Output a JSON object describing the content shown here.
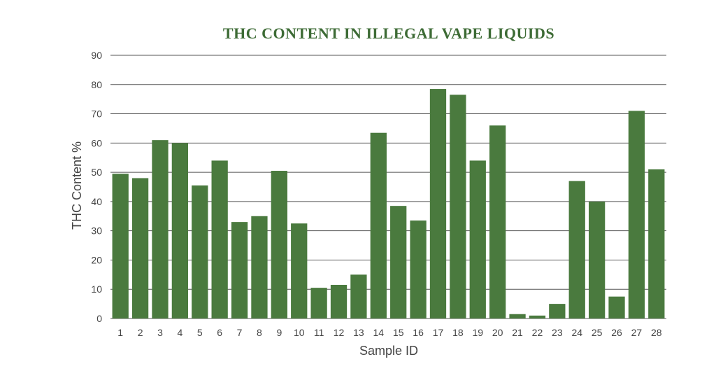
{
  "chart_data": {
    "type": "bar",
    "title": "THC CONTENT IN ILLEGAL VAPE LIQUIDS",
    "xlabel": "Sample ID",
    "ylabel": "THC Content %",
    "ylim": [
      0,
      90
    ],
    "yticks": [
      0,
      10,
      20,
      30,
      40,
      50,
      60,
      70,
      80,
      90
    ],
    "grid": true,
    "legend": "none",
    "categories": [
      "1",
      "2",
      "3",
      "4",
      "5",
      "6",
      "7",
      "8",
      "9",
      "10",
      "11",
      "12",
      "13",
      "14",
      "15",
      "16",
      "17",
      "18",
      "19",
      "20",
      "21",
      "22",
      "23",
      "24",
      "25",
      "26",
      "27",
      "28"
    ],
    "values": [
      49.5,
      48,
      61,
      60,
      45.5,
      54,
      33,
      35,
      50.5,
      32.5,
      10.5,
      11.5,
      15,
      63.5,
      38.5,
      33.5,
      78.5,
      76.5,
      54,
      66,
      1.5,
      1,
      5,
      47,
      40,
      7.5,
      71,
      51
    ]
  },
  "colors": {
    "bar": "#4a7a3e",
    "title": "#3d6b35",
    "text": "#444444",
    "grid": "#555555"
  }
}
